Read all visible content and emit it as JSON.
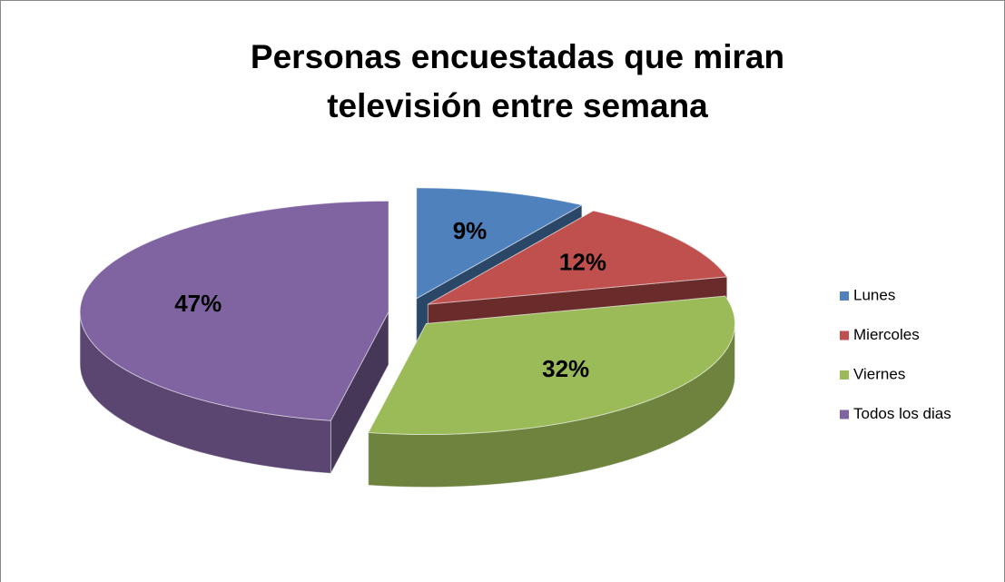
{
  "chart_data": {
    "type": "pie",
    "title": "Personas encuestadas que miran televisión entre semana",
    "categories": [
      "Lunes",
      "Miercoles",
      "Viernes",
      "Todos los dias"
    ],
    "values": [
      9,
      12,
      32,
      47
    ],
    "value_labels": [
      "9%",
      "12%",
      "32%",
      "47%"
    ],
    "colors": [
      "#4f81bd",
      "#c0504d",
      "#9bbb59",
      "#8064a2"
    ],
    "legend": "right"
  }
}
